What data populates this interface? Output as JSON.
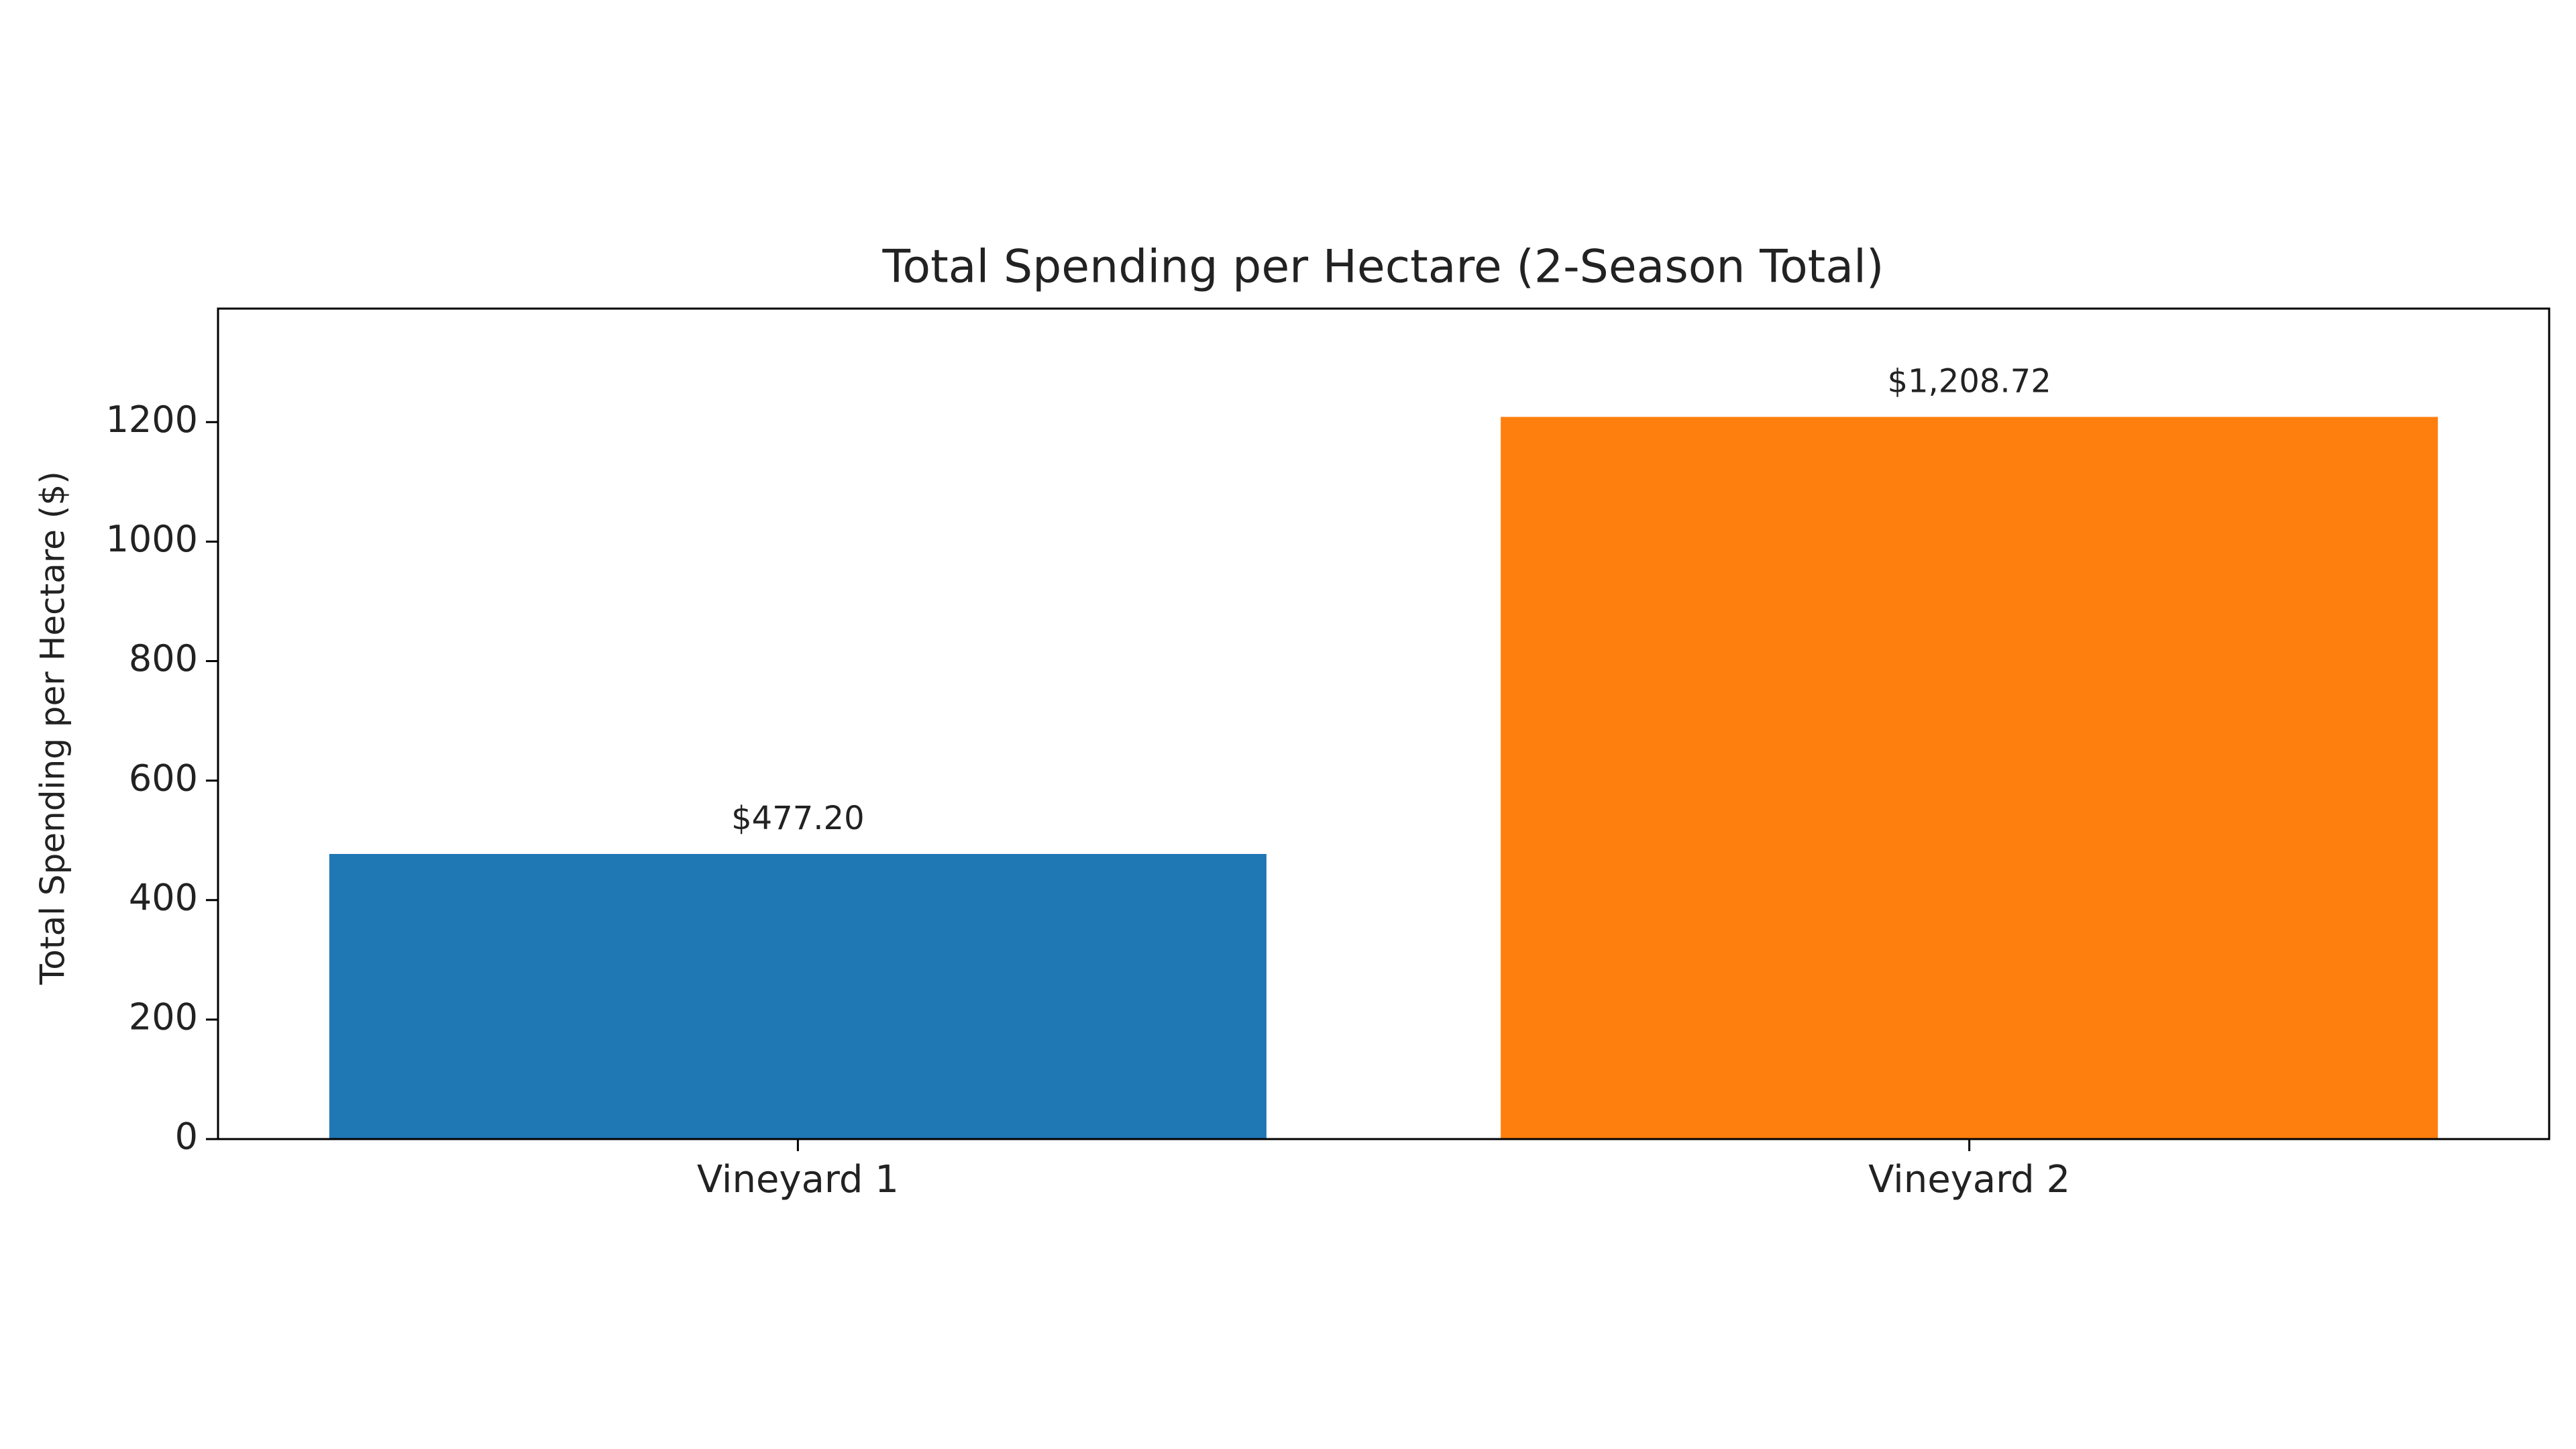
{
  "chart_data": {
    "type": "bar",
    "title": "Total Spending per Hectare (2-Season Total)",
    "y_label": "Total Spending per Hectare ($)",
    "categories": [
      "Vineyard 1",
      "Vineyard 2"
    ],
    "values": [
      477.2,
      1208.72
    ],
    "value_labels": [
      "$477.20",
      "$1,208.72"
    ],
    "colors": [
      "#1f77b4",
      "#ff7f0e"
    ],
    "ylim": [
      0,
      1390
    ],
    "yticks": [
      0,
      200,
      400,
      600,
      800,
      1000,
      1200
    ],
    "grid": false
  }
}
